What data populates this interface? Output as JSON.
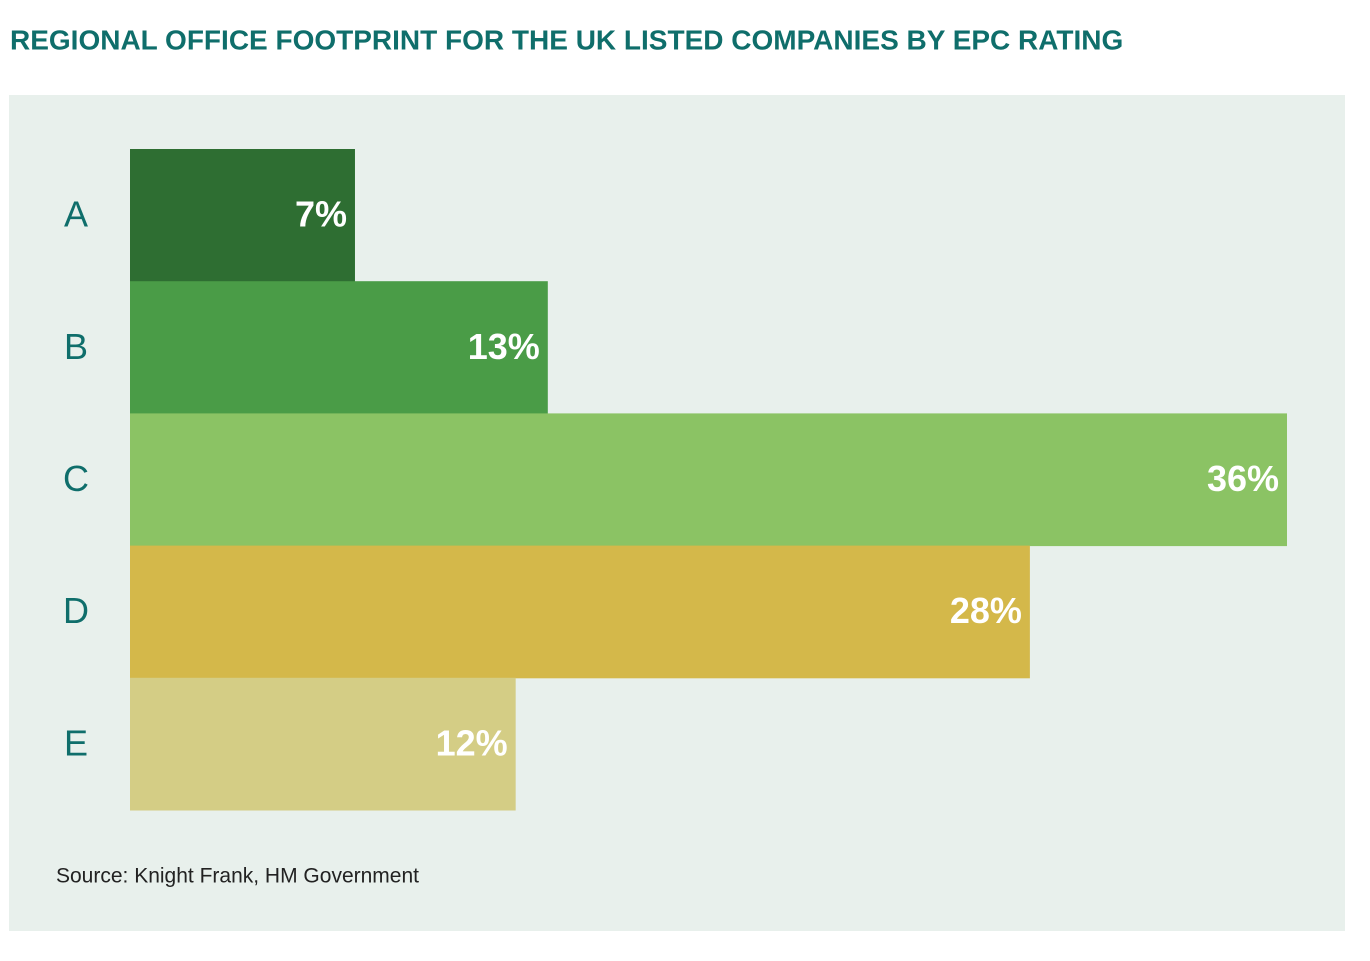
{
  "chart_data": {
    "type": "bar",
    "orientation": "horizontal",
    "title": "REGIONAL OFFICE FOOTPRINT FOR THE UK LISTED COMPANIES BY EPC RATING",
    "categories": [
      "A",
      "B",
      "C",
      "D",
      "E"
    ],
    "values": [
      7,
      13,
      36,
      28,
      12
    ],
    "value_labels": [
      "7%",
      "13%",
      "36%",
      "28%",
      "12%"
    ],
    "colors": [
      "#2e6e32",
      "#4a9c47",
      "#8bc364",
      "#d4b84a",
      "#d4cd85"
    ],
    "source": "Source: Knight Frank, HM Government"
  }
}
